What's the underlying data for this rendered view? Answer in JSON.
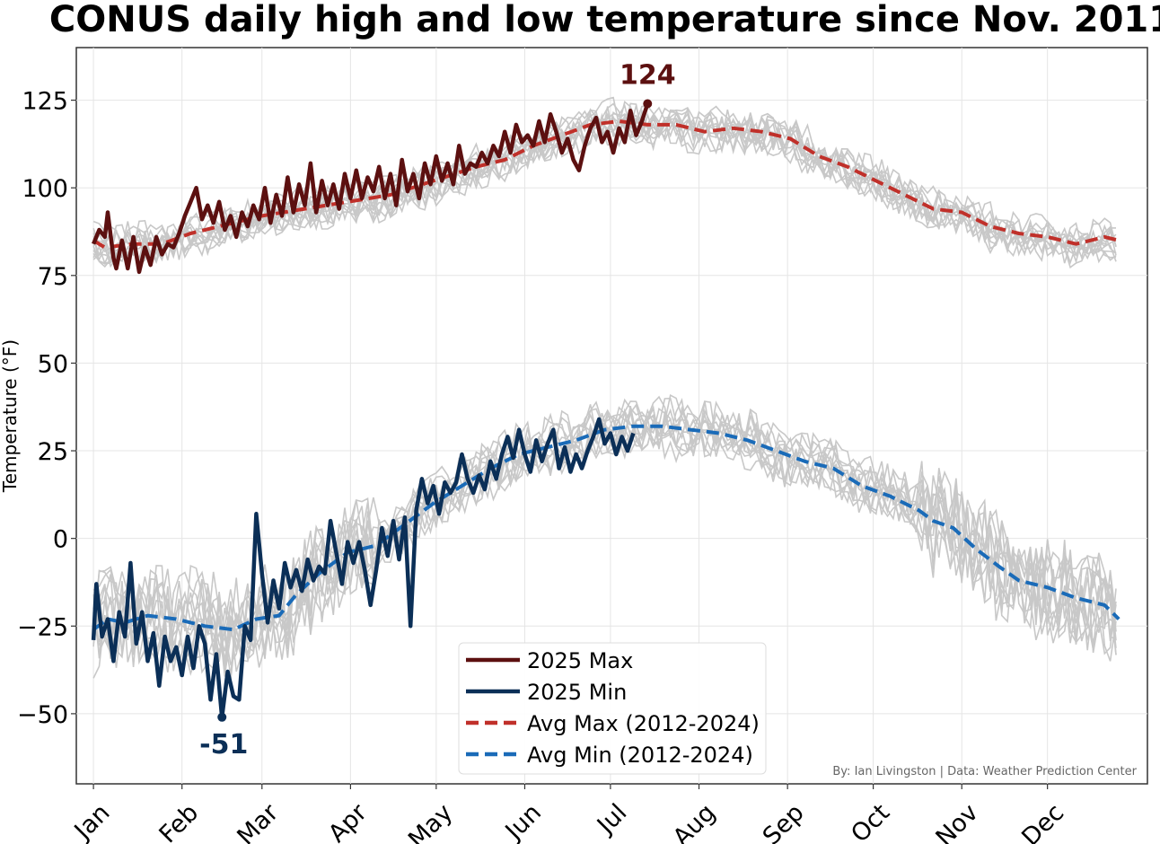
{
  "chart_data": {
    "type": "line",
    "title": "CONUS daily high and low temperature since Nov. 2011",
    "ylabel": "Temperature (°F)",
    "xlabel": "",
    "ylim": [
      -70,
      140
    ],
    "yticks": [
      125,
      100,
      75,
      50,
      25,
      0,
      -25,
      -50
    ],
    "ytick_labels": [
      "125",
      "100",
      "75",
      "50",
      "25",
      "0",
      "−25",
      "−50"
    ],
    "months": [
      "Jan",
      "Feb",
      "Mar",
      "Apr",
      "May",
      "Jun",
      "Jul",
      "Aug",
      "Sep",
      "Oct",
      "Nov",
      "Dec"
    ],
    "month_start_days": [
      1,
      32,
      60,
      91,
      121,
      152,
      182,
      213,
      244,
      274,
      305,
      335
    ],
    "grid": true,
    "legend_position": "bottom-center",
    "legend": [
      "2025 Max",
      "2025 Min",
      "Avg Max (2012-2024)",
      "Avg Min (2012-2024)"
    ],
    "series": [
      {
        "name": "2025 Max",
        "color": "#5c1010",
        "style": "solid",
        "points": [
          [
            1,
            84
          ],
          [
            3,
            88
          ],
          [
            5,
            86
          ],
          [
            6,
            93
          ],
          [
            8,
            80
          ],
          [
            9,
            77
          ],
          [
            11,
            85
          ],
          [
            13,
            77
          ],
          [
            15,
            86
          ],
          [
            17,
            76
          ],
          [
            19,
            83
          ],
          [
            21,
            78
          ],
          [
            23,
            86
          ],
          [
            25,
            81
          ],
          [
            27,
            84
          ],
          [
            29,
            83
          ],
          [
            31,
            87
          ],
          [
            33,
            92
          ],
          [
            35,
            96
          ],
          [
            37,
            100
          ],
          [
            39,
            91
          ],
          [
            41,
            95
          ],
          [
            43,
            90
          ],
          [
            45,
            96
          ],
          [
            47,
            88
          ],
          [
            49,
            92
          ],
          [
            51,
            86
          ],
          [
            53,
            93
          ],
          [
            55,
            89
          ],
          [
            57,
            95
          ],
          [
            59,
            91
          ],
          [
            61,
            100
          ],
          [
            63,
            90
          ],
          [
            65,
            98
          ],
          [
            67,
            92
          ],
          [
            69,
            103
          ],
          [
            71,
            93
          ],
          [
            73,
            101
          ],
          [
            75,
            95
          ],
          [
            77,
            107
          ],
          [
            79,
            93
          ],
          [
            81,
            102
          ],
          [
            83,
            95
          ],
          [
            85,
            101
          ],
          [
            87,
            94
          ],
          [
            89,
            104
          ],
          [
            91,
            97
          ],
          [
            93,
            105
          ],
          [
            95,
            97
          ],
          [
            97,
            103
          ],
          [
            99,
            99
          ],
          [
            101,
            106
          ],
          [
            103,
            97
          ],
          [
            105,
            104
          ],
          [
            107,
            95
          ],
          [
            109,
            108
          ],
          [
            111,
            99
          ],
          [
            113,
            104
          ],
          [
            115,
            97
          ],
          [
            117,
            107
          ],
          [
            119,
            101
          ],
          [
            121,
            109
          ],
          [
            123,
            102
          ],
          [
            125,
            107
          ],
          [
            127,
            101
          ],
          [
            129,
            112
          ],
          [
            131,
            104
          ],
          [
            133,
            107
          ],
          [
            135,
            106
          ],
          [
            137,
            110
          ],
          [
            139,
            107
          ],
          [
            141,
            112
          ],
          [
            143,
            109
          ],
          [
            145,
            116
          ],
          [
            147,
            110
          ],
          [
            149,
            118
          ],
          [
            151,
            113
          ],
          [
            153,
            115
          ],
          [
            155,
            112
          ],
          [
            157,
            119
          ],
          [
            159,
            113
          ],
          [
            161,
            121
          ],
          [
            163,
            116
          ],
          [
            165,
            110
          ],
          [
            167,
            114
          ],
          [
            169,
            108
          ],
          [
            171,
            105
          ],
          [
            173,
            112
          ],
          [
            175,
            117
          ],
          [
            177,
            120
          ],
          [
            179,
            113
          ],
          [
            181,
            116
          ],
          [
            183,
            110
          ],
          [
            185,
            117
          ],
          [
            187,
            113
          ],
          [
            189,
            122
          ],
          [
            191,
            115
          ],
          [
            193,
            119
          ],
          [
            195,
            124
          ]
        ]
      },
      {
        "name": "2025 Min",
        "color": "#0b2f57",
        "style": "solid",
        "points": [
          [
            1,
            -29
          ],
          [
            2,
            -13
          ],
          [
            4,
            -28
          ],
          [
            6,
            -23
          ],
          [
            8,
            -35
          ],
          [
            10,
            -21
          ],
          [
            12,
            -28
          ],
          [
            14,
            -7
          ],
          [
            16,
            -30
          ],
          [
            18,
            -21
          ],
          [
            20,
            -35
          ],
          [
            22,
            -27
          ],
          [
            24,
            -42
          ],
          [
            26,
            -28
          ],
          [
            28,
            -35
          ],
          [
            30,
            -31
          ],
          [
            32,
            -39
          ],
          [
            34,
            -28
          ],
          [
            36,
            -37
          ],
          [
            38,
            -25
          ],
          [
            40,
            -30
          ],
          [
            42,
            -46
          ],
          [
            44,
            -33
          ],
          [
            46,
            -51
          ],
          [
            48,
            -38
          ],
          [
            50,
            -45
          ],
          [
            52,
            -46
          ],
          [
            54,
            -25
          ],
          [
            56,
            -29
          ],
          [
            58,
            7
          ],
          [
            60,
            -10
          ],
          [
            62,
            -24
          ],
          [
            64,
            -12
          ],
          [
            66,
            -20
          ],
          [
            68,
            -7
          ],
          [
            70,
            -14
          ],
          [
            72,
            -9
          ],
          [
            74,
            -15
          ],
          [
            76,
            -6
          ],
          [
            78,
            -12
          ],
          [
            80,
            -8
          ],
          [
            82,
            -10
          ],
          [
            84,
            5
          ],
          [
            86,
            -4
          ],
          [
            88,
            -13
          ],
          [
            90,
            -1
          ],
          [
            92,
            -7
          ],
          [
            94,
            -1
          ],
          [
            96,
            -9
          ],
          [
            98,
            -19
          ],
          [
            100,
            -9
          ],
          [
            102,
            3
          ],
          [
            104,
            -5
          ],
          [
            106,
            5
          ],
          [
            108,
            -6
          ],
          [
            110,
            6
          ],
          [
            112,
            -25
          ],
          [
            114,
            8
          ],
          [
            116,
            17
          ],
          [
            118,
            10
          ],
          [
            120,
            15
          ],
          [
            122,
            7
          ],
          [
            124,
            16
          ],
          [
            126,
            13
          ],
          [
            128,
            16
          ],
          [
            130,
            24
          ],
          [
            132,
            17
          ],
          [
            134,
            13
          ],
          [
            136,
            18
          ],
          [
            138,
            14
          ],
          [
            140,
            22
          ],
          [
            142,
            17
          ],
          [
            144,
            24
          ],
          [
            146,
            29
          ],
          [
            148,
            23
          ],
          [
            150,
            31
          ],
          [
            152,
            24
          ],
          [
            154,
            19
          ],
          [
            156,
            28
          ],
          [
            158,
            22
          ],
          [
            160,
            27
          ],
          [
            162,
            31
          ],
          [
            164,
            20
          ],
          [
            166,
            26
          ],
          [
            168,
            19
          ],
          [
            170,
            24
          ],
          [
            172,
            20
          ],
          [
            174,
            25
          ],
          [
            176,
            29
          ],
          [
            178,
            34
          ],
          [
            180,
            27
          ],
          [
            182,
            30
          ],
          [
            184,
            24
          ],
          [
            186,
            29
          ],
          [
            188,
            25
          ],
          [
            190,
            30
          ]
        ]
      },
      {
        "name": "Avg Max (2012-2024)",
        "color": "#c0302a",
        "style": "dashed",
        "points": [
          [
            1,
            85
          ],
          [
            5,
            83
          ],
          [
            15,
            84
          ],
          [
            25,
            84
          ],
          [
            35,
            87
          ],
          [
            45,
            89
          ],
          [
            60,
            92
          ],
          [
            75,
            94
          ],
          [
            90,
            96
          ],
          [
            105,
            98
          ],
          [
            120,
            102
          ],
          [
            135,
            106
          ],
          [
            145,
            108
          ],
          [
            155,
            112
          ],
          [
            165,
            115
          ],
          [
            175,
            118
          ],
          [
            185,
            119
          ],
          [
            195,
            118
          ],
          [
            205,
            118
          ],
          [
            215,
            116
          ],
          [
            225,
            117
          ],
          [
            235,
            116
          ],
          [
            245,
            114
          ],
          [
            255,
            109
          ],
          [
            265,
            106
          ],
          [
            275,
            102
          ],
          [
            285,
            98
          ],
          [
            295,
            94
          ],
          [
            305,
            93
          ],
          [
            315,
            89
          ],
          [
            325,
            87
          ],
          [
            335,
            86
          ],
          [
            345,
            84
          ],
          [
            355,
            86
          ],
          [
            360,
            85
          ]
        ]
      },
      {
        "name": "Avg Min (2012-2024)",
        "color": "#1a6bb8",
        "style": "dashed",
        "points": [
          [
            1,
            -26
          ],
          [
            6,
            -23
          ],
          [
            12,
            -24
          ],
          [
            20,
            -22
          ],
          [
            30,
            -23
          ],
          [
            40,
            -25
          ],
          [
            50,
            -26
          ],
          [
            58,
            -23
          ],
          [
            66,
            -22
          ],
          [
            72,
            -16
          ],
          [
            80,
            -10
          ],
          [
            90,
            -4
          ],
          [
            100,
            -2
          ],
          [
            110,
            4
          ],
          [
            120,
            10
          ],
          [
            130,
            15
          ],
          [
            140,
            20
          ],
          [
            150,
            24
          ],
          [
            160,
            26
          ],
          [
            170,
            28
          ],
          [
            180,
            31
          ],
          [
            190,
            32
          ],
          [
            200,
            32
          ],
          [
            210,
            31
          ],
          [
            220,
            30
          ],
          [
            230,
            28
          ],
          [
            240,
            25
          ],
          [
            250,
            22
          ],
          [
            260,
            20
          ],
          [
            270,
            15
          ],
          [
            280,
            12
          ],
          [
            290,
            8
          ],
          [
            295,
            5
          ],
          [
            302,
            3
          ],
          [
            310,
            -3
          ],
          [
            318,
            -8
          ],
          [
            325,
            -12
          ],
          [
            335,
            -14
          ],
          [
            345,
            -17
          ],
          [
            355,
            -19
          ],
          [
            360,
            -23
          ]
        ]
      }
    ],
    "annotations": [
      {
        "text": "124",
        "x": 195,
        "y": 124,
        "color": "#5c1010"
      },
      {
        "text": "-51",
        "x": 46,
        "y": -51,
        "color": "#0b2f57"
      }
    ],
    "credit": "By: Ian Livingston | Data: Weather Prediction Center"
  }
}
